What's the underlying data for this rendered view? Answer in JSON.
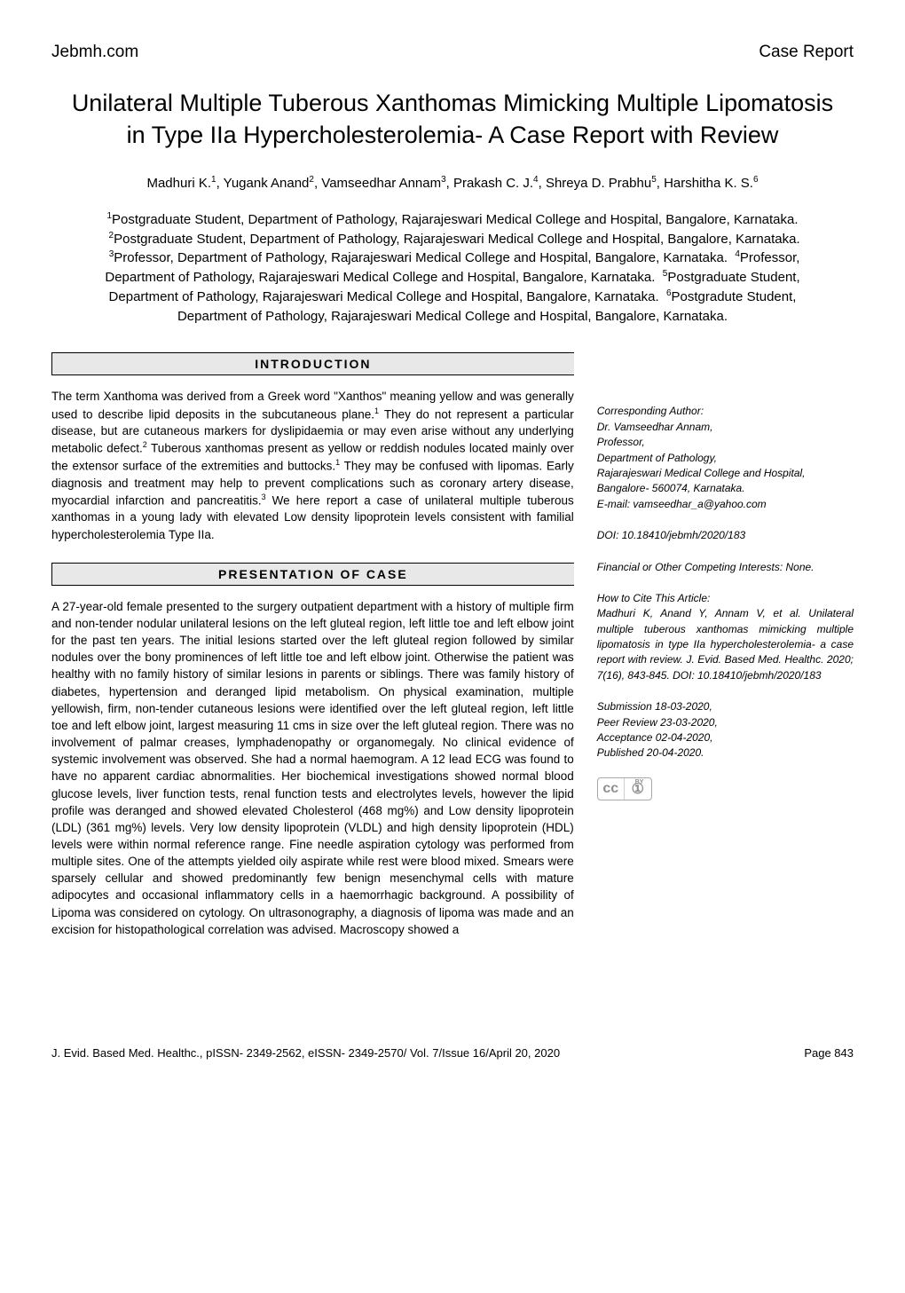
{
  "header": {
    "site_name": "Jebmh.com",
    "report_type": "Case Report"
  },
  "title": "Unilateral Multiple Tuberous Xanthomas Mimicking Multiple Lipomatosis in Type IIa Hypercholesterolemia- A Case Report with Review",
  "authors_html": "Madhuri K.<sup>1</sup>, Yugank Anand<sup>2</sup>, Vamseedhar Annam<sup>3</sup>, Prakash C. J.<sup>4</sup>, Shreya D. Prabhu<sup>5</sup>, Harshitha K. S.<sup>6</sup>",
  "affiliations_html": "<sup>1</sup>Postgraduate Student, Department of Pathology, Rajarajeswari Medical College and Hospital, Bangalore, Karnataka. &nbsp;<sup>2</sup>Postgraduate Student, Department of Pathology, Rajarajeswari Medical College and Hospital, Bangalore, Karnataka. &nbsp;<sup>3</sup>Professor, Department of Pathology, Rajarajeswari Medical College and Hospital, Bangalore, Karnataka. &nbsp;<sup>4</sup>Professor, Department of Pathology, Rajarajeswari Medical College and Hospital, Bangalore, Karnataka. &nbsp;<sup>5</sup>Postgraduate Student, Department of Pathology, Rajarajeswari Medical College and Hospital, Bangalore, Karnataka. &nbsp;<sup>6</sup>Postgradute Student, Department of Pathology, Rajarajeswari Medical College and Hospital, Bangalore, Karnataka.",
  "sections": {
    "intro": {
      "heading": "INTRODUCTION",
      "body_html": "The term Xanthoma was derived from a Greek word \"Xanthos\" meaning yellow and was generally used to describe lipid deposits in the subcutaneous plane.<sup>1</sup> They do not represent a particular disease, but are cutaneous markers for dyslipidaemia or may even arise without any underlying metabolic defect.<sup>2</sup> Tuberous xanthomas present as yellow or reddish nodules located mainly over the extensor surface of the extremities and buttocks.<sup>1</sup> They may be confused with lipomas. Early diagnosis and treatment may help to prevent complications such as coronary artery disease, myocardial infarction and pancreatitis.<sup>3</sup> We here report a case of unilateral multiple tuberous xanthomas in a young lady with elevated Low density lipoprotein levels consistent with familial hypercholesterolemia Type IIa."
    },
    "case": {
      "heading": "PRESENTATION OF CASE",
      "body_html": "A 27-year-old female presented to the surgery outpatient department with a history of multiple firm and non-tender nodular unilateral lesions on the left gluteal region, left little toe and left elbow joint for the past ten years. The initial lesions started over the left gluteal region followed by similar nodules over the bony prominences of left little toe and left elbow joint. Otherwise the patient was healthy with no family history of similar lesions in parents or siblings. There was family history of diabetes, hypertension and deranged lipid metabolism. On physical examination, multiple yellowish, firm, non-tender cutaneous lesions were identified over the left gluteal region, left little toe and left elbow joint, largest measuring 11 cms in size over the left gluteal region. There was no involvement of palmar creases, lymphadenopathy or organomegaly. No clinical evidence of systemic involvement was observed. She had a normal haemogram. A 12 lead ECG was found to have no apparent cardiac abnormalities. Her biochemical investigations showed normal blood glucose levels, liver function tests, renal function tests and electrolytes levels, however the lipid profile was deranged and showed elevated Cholesterol (468 mg%) and Low density lipoprotein (LDL) (361 mg%) levels. Very low density lipoprotein (VLDL) and high density lipoprotein (HDL) levels were within normal reference range. Fine needle aspiration cytology was performed from multiple sites. One of the attempts yielded oily aspirate while rest were blood mixed. Smears were sparsely cellular and showed predominantly few benign mesenchymal cells with mature adipocytes and occasional inflammatory cells in a haemorrhagic background. A possibility of Lipoma was considered on cytology. On ultrasonography, a diagnosis of lipoma was made and an excision for histopathological correlation was advised. Macroscopy showed a"
    }
  },
  "sidebar": {
    "corresponding": {
      "label": "Corresponding Author:",
      "name": "Dr. Vamseedhar Annam,",
      "role": "Professor,",
      "dept": "Department of Pathology,",
      "inst": "Rajarajeswari Medical College and Hospital,",
      "city": "Bangalore- 560074, Karnataka.",
      "email": "E-mail: vamseedhar_a@yahoo.com"
    },
    "doi": "DOI: 10.18410/jebmh/2020/183",
    "financial": "Financial or Other Competing Interests: None.",
    "cite": {
      "label": "How to Cite This Article:",
      "text": "Madhuri K, Anand Y, Annam V, et al. Unilateral multiple tuberous xanthomas mimicking multiple lipomatosis in type IIa hypercholesterolemia- a case report with review. J. Evid. Based Med. Healthc. 2020; 7(16), 843-845. DOI: 10.18410/jebmh/2020/183"
    },
    "dates": {
      "submission": "Submission 18-03-2020,",
      "peer": "Peer Review 23-03-2020,",
      "acceptance": "Acceptance 02-04-2020,",
      "published": "Published 20-04-2020."
    },
    "cc": {
      "left": "cc",
      "right": "①",
      "by": "BY"
    }
  },
  "footer": {
    "journal": "J. Evid. Based Med. Healthc., pISSN- 2349-2562, eISSN- 2349-2570/ Vol. 7/Issue 16/April 20, 2020",
    "page": "Page 843"
  },
  "styling": {
    "page_bg": "#ffffff",
    "text_color": "#000000",
    "heading_bg": "#e8e8e8",
    "heading_border": "#000000",
    "title_fontsize": 27,
    "author_fontsize": 15,
    "body_fontsize": 13.5,
    "sidebar_fontsize": 12,
    "footer_fontsize": 13,
    "font_family": "Verdana, sans-serif",
    "badge_border": "#a9a9a9",
    "badge_text": "#8f8f8f"
  }
}
